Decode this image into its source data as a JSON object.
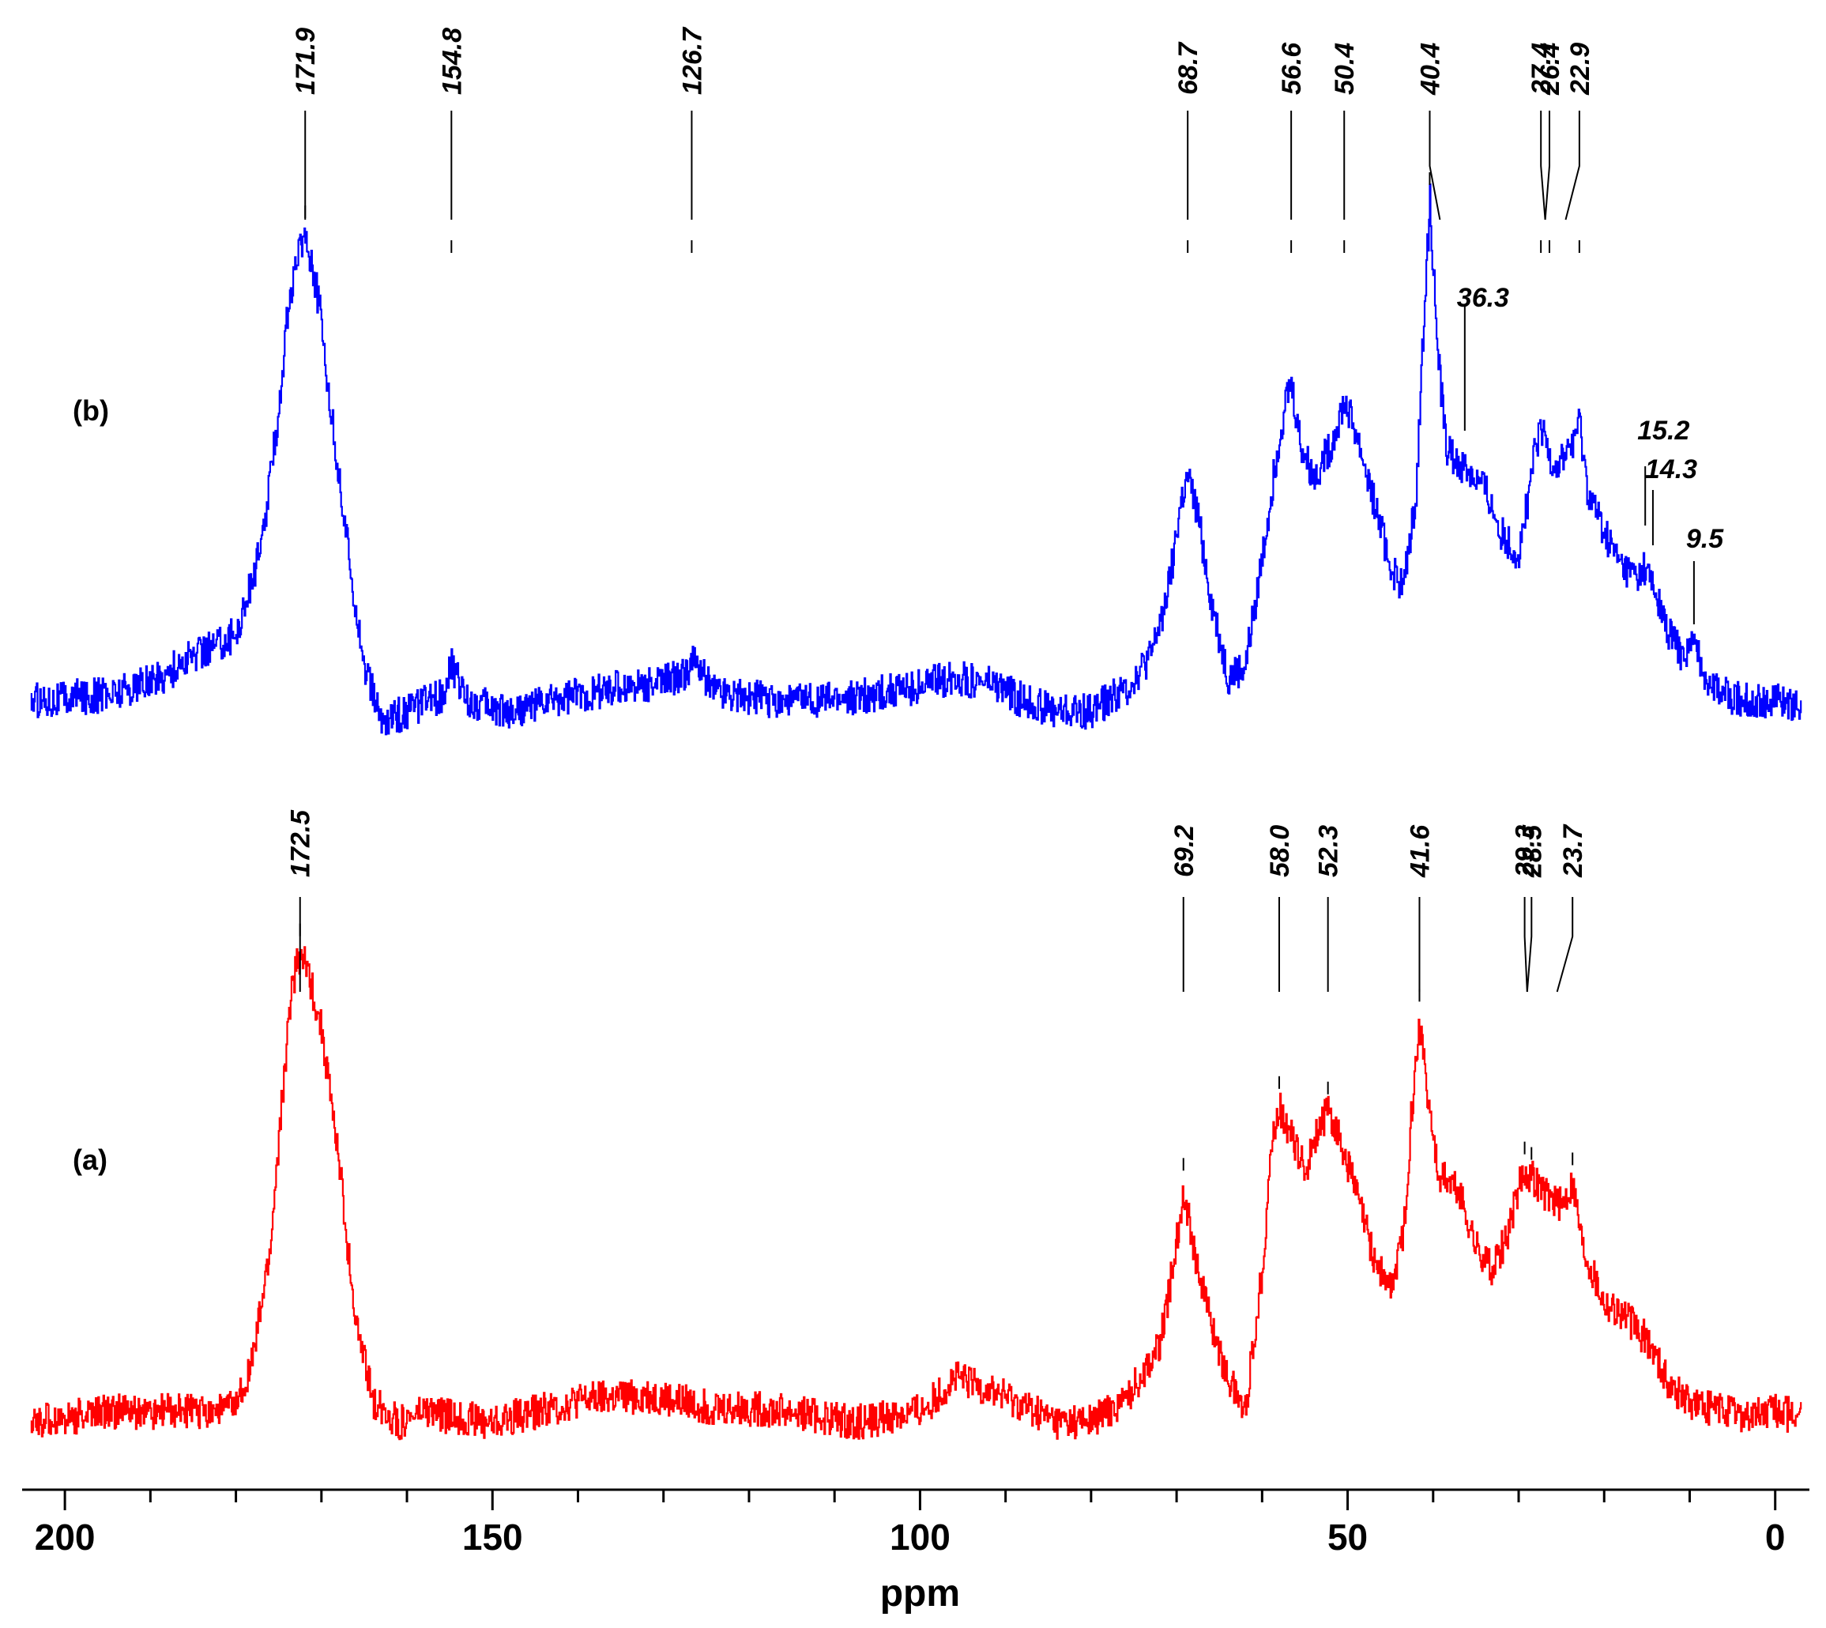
{
  "chart_data": {
    "type": "line",
    "title": "",
    "xlabel": "ppm",
    "ylabel": "",
    "x_reversed": true,
    "xlim": [
      205,
      -4
    ],
    "x_ticks": [
      200,
      150,
      100,
      50,
      0
    ],
    "grid": false,
    "series": [
      {
        "name": "(b)",
        "color": "#0000ff",
        "baseline": 0.0,
        "x": [
          204,
          195,
          189,
          185,
          180,
          177,
          175,
          174,
          173,
          172.5,
          171.9,
          171,
          170,
          169,
          167,
          165,
          163,
          160,
          156,
          154.8,
          153,
          148,
          140,
          132,
          128,
          126.7,
          124,
          118,
          110,
          102,
          96,
          92,
          88,
          84,
          80,
          76,
          73,
          71,
          69.5,
          68.7,
          67.5,
          66,
          64,
          62,
          60,
          58,
          57,
          56.6,
          55.5,
          54,
          52,
          50.4,
          49,
          47,
          45,
          43.5,
          42,
          41,
          40.4,
          39.5,
          38.5,
          37.5,
          36.3,
          34,
          32,
          30,
          29,
          28,
          27.4,
          26.9,
          26.4,
          25.5,
          24,
          22.9,
          22,
          20,
          18,
          16,
          15.2,
          14.8,
          14.3,
          13,
          11,
          9.5,
          8,
          6,
          3,
          0,
          -3
        ],
        "y": [
          0.02,
          0.03,
          0.06,
          0.1,
          0.14,
          0.3,
          0.55,
          0.72,
          0.8,
          0.85,
          0.86,
          0.8,
          0.7,
          0.55,
          0.3,
          0.08,
          -0.02,
          0.0,
          0.03,
          0.08,
          0.02,
          0.0,
          0.03,
          0.05,
          0.06,
          0.09,
          0.04,
          0.02,
          0.02,
          0.04,
          0.06,
          0.05,
          0.02,
          0.0,
          0.0,
          0.04,
          0.1,
          0.22,
          0.38,
          0.42,
          0.35,
          0.2,
          0.06,
          0.08,
          0.28,
          0.5,
          0.58,
          0.59,
          0.48,
          0.42,
          0.48,
          0.56,
          0.5,
          0.38,
          0.26,
          0.22,
          0.4,
          0.75,
          0.92,
          0.65,
          0.48,
          0.45,
          0.44,
          0.4,
          0.32,
          0.28,
          0.38,
          0.48,
          0.5,
          0.49,
          0.46,
          0.44,
          0.48,
          0.52,
          0.4,
          0.32,
          0.26,
          0.24,
          0.26,
          0.24,
          0.22,
          0.16,
          0.1,
          0.12,
          0.06,
          0.03,
          0.02,
          0.02,
          0.01
        ]
      },
      {
        "name": "(a)",
        "color": "#ff0000",
        "baseline": 0.0,
        "x": [
          204,
          195,
          185,
          180,
          178,
          176,
          174.5,
          173.5,
          172.5,
          171.5,
          170,
          168,
          166,
          164,
          161,
          158,
          155,
          150,
          140,
          132,
          125,
          115,
          108,
          100,
          96,
          92,
          88,
          84,
          80,
          76,
          72,
          70.5,
          69.2,
          68,
          66,
          64,
          62,
          60,
          59,
          58,
          57,
          55,
          53.5,
          52.3,
          51,
          49,
          47,
          45,
          43.5,
          42.5,
          41.6,
          40.5,
          39.5,
          37,
          35,
          33,
          31,
          30,
          29.3,
          28.5,
          27,
          25,
          23.7,
          22.5,
          20,
          18,
          15,
          12,
          9,
          6,
          3,
          0,
          -3
        ],
        "y": [
          0.0,
          0.02,
          0.02,
          0.03,
          0.12,
          0.32,
          0.62,
          0.8,
          0.86,
          0.82,
          0.72,
          0.48,
          0.18,
          0.04,
          0.0,
          0.02,
          0.01,
          0.0,
          0.04,
          0.05,
          0.03,
          0.02,
          0.0,
          0.02,
          0.08,
          0.06,
          0.03,
          0.0,
          0.0,
          0.04,
          0.14,
          0.28,
          0.43,
          0.32,
          0.18,
          0.08,
          0.02,
          0.28,
          0.5,
          0.58,
          0.54,
          0.46,
          0.54,
          0.57,
          0.52,
          0.42,
          0.3,
          0.24,
          0.35,
          0.58,
          0.74,
          0.58,
          0.46,
          0.42,
          0.32,
          0.28,
          0.36,
          0.44,
          0.46,
          0.45,
          0.42,
          0.4,
          0.44,
          0.32,
          0.22,
          0.2,
          0.15,
          0.06,
          0.03,
          0.02,
          0.01,
          0.02,
          0.01
        ]
      }
    ],
    "series_labels": [
      "(b)",
      "(a)"
    ],
    "peak_labels": {
      "b": [
        {
          "ppm": 171.9,
          "text": "171.9"
        },
        {
          "ppm": 154.8,
          "text": "154.8"
        },
        {
          "ppm": 126.7,
          "text": "126.7"
        },
        {
          "ppm": 68.7,
          "text": "68.7"
        },
        {
          "ppm": 56.6,
          "text": "56.6"
        },
        {
          "ppm": 50.4,
          "text": "50.4"
        },
        {
          "ppm": 40.4,
          "text": "40.4"
        },
        {
          "ppm": 27.4,
          "text": "27.4"
        },
        {
          "ppm": 26.4,
          "text": "26.4"
        },
        {
          "ppm": 22.9,
          "text": "22.9"
        }
      ],
      "b_inline": [
        {
          "ppm": 36.3,
          "text": "36.3"
        },
        {
          "ppm": 15.2,
          "text": "15.2"
        },
        {
          "ppm": 14.3,
          "text": "14.3"
        },
        {
          "ppm": 9.5,
          "text": "9.5"
        }
      ],
      "a": [
        {
          "ppm": 172.5,
          "text": "172.5"
        },
        {
          "ppm": 69.2,
          "text": "69.2"
        },
        {
          "ppm": 58.0,
          "text": "58.0"
        },
        {
          "ppm": 52.3,
          "text": "52.3"
        },
        {
          "ppm": 41.6,
          "text": "41.6"
        },
        {
          "ppm": 29.3,
          "text": "29.3"
        },
        {
          "ppm": 28.5,
          "text": "28.5"
        },
        {
          "ppm": 23.7,
          "text": "23.7"
        }
      ]
    }
  }
}
